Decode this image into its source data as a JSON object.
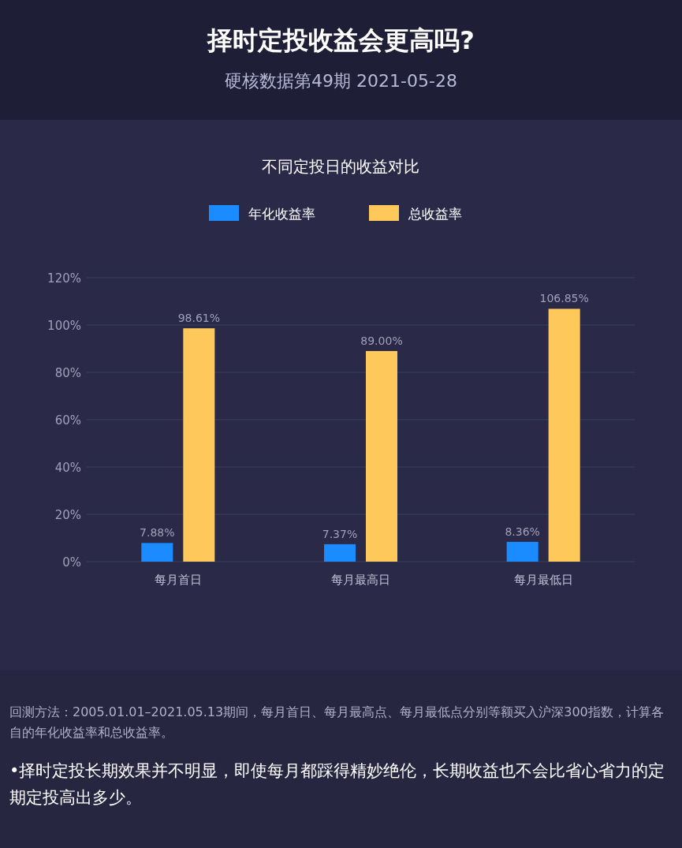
{
  "chart_data": {
    "type": "bar",
    "title": "择时定投收益会更高吗?",
    "subtitle": "硬核数据第49期 2021-05-28",
    "annotations": [
      "不同定投日的收益对比",
      "回测方法：2005.01.01–2021.05.13期间，每月首日、每月最高点、每月最低点分别等额买入沪深300指数，计算各自的年化收益率和总收益率。",
      "•择时定投长期效果并不明显，即使每月都踩得精妙绝伦，长期收益也不会比省心省力的定期定投高出多少。"
    ],
    "categories": [
      "每月首日",
      "每月最高日",
      "每月最低日"
    ],
    "series": [
      {
        "name": "年化收益率",
        "color": "#1a8cff",
        "values": [
          7.88,
          7.37,
          8.36
        ],
        "value_labels": [
          "7.88%",
          "7.37%",
          "8.36%"
        ]
      },
      {
        "name": "总收益率",
        "color": "#ffc85a",
        "values": [
          98.61,
          89.0,
          106.85
        ],
        "value_labels": [
          "98.61%",
          "89.00%",
          "106.85%"
        ]
      }
    ],
    "ylim": [
      0,
      120
    ],
    "yticks": [
      {
        "value": 0,
        "label": "0%"
      },
      {
        "value": 20,
        "label": "20%"
      },
      {
        "value": 40,
        "label": "40%"
      },
      {
        "value": 60,
        "label": "60%"
      },
      {
        "value": 80,
        "label": "80%"
      },
      {
        "value": 100,
        "label": "100%"
      },
      {
        "value": 120,
        "label": "120%"
      }
    ],
    "grid": "y",
    "legend": "top"
  }
}
